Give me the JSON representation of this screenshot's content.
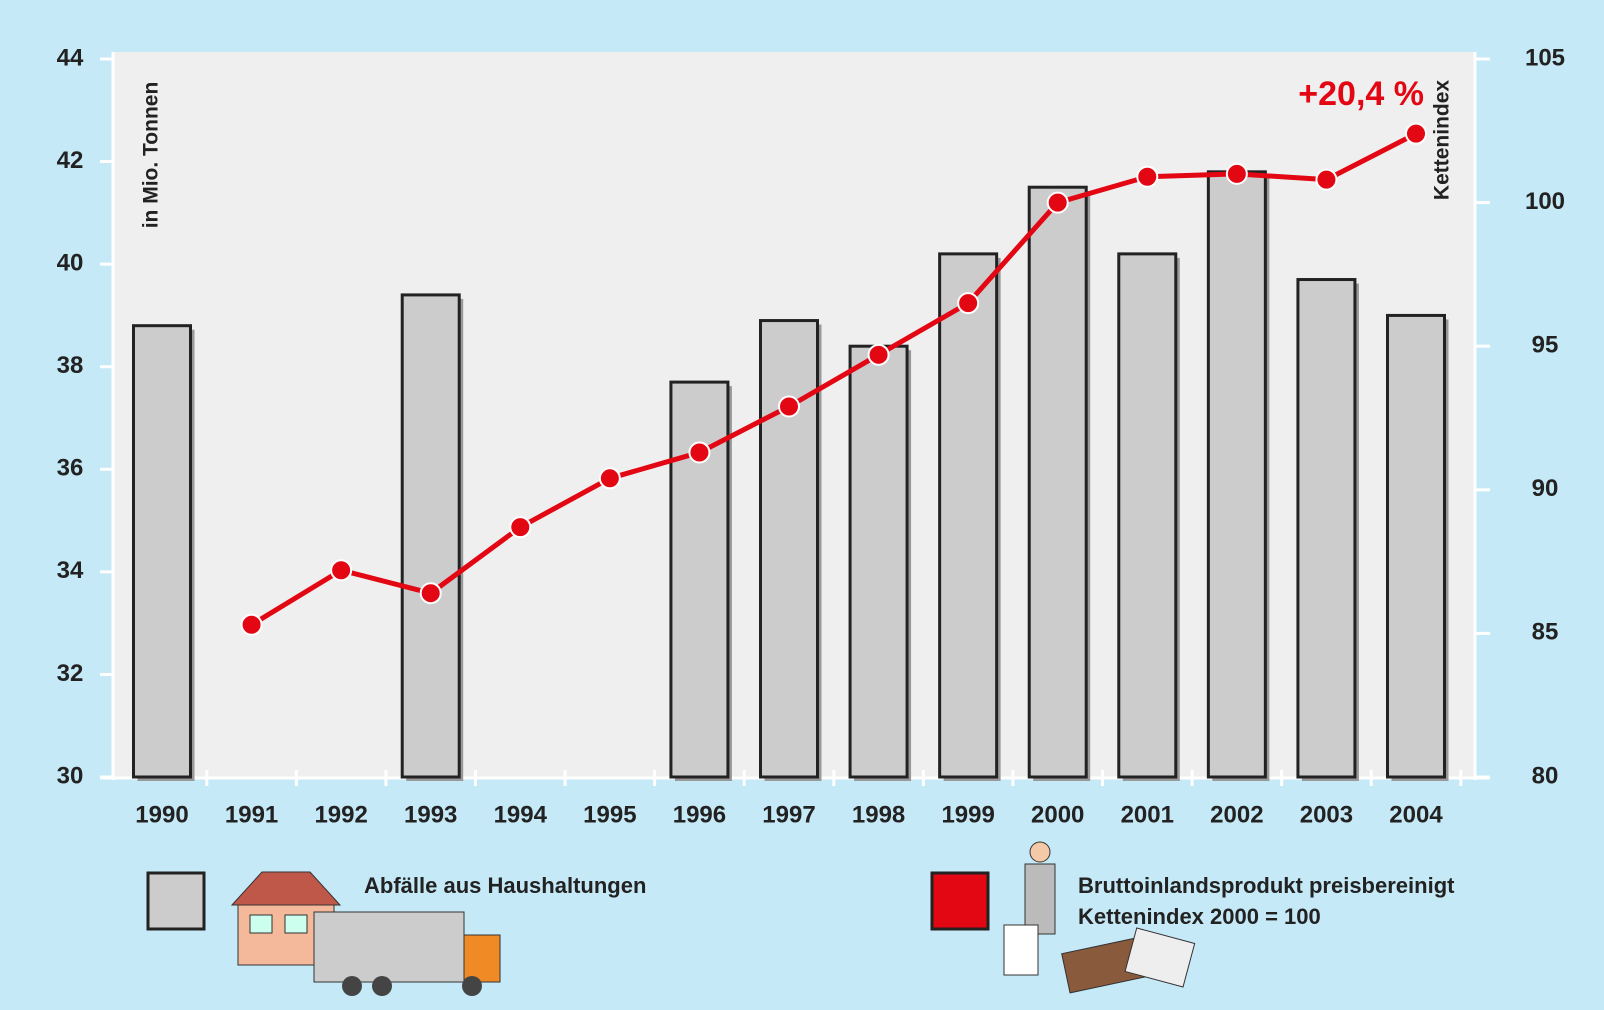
{
  "chart_data": {
    "type": "bar-line",
    "ylabel": "in Mio. Tonnen",
    "y2label": "Kettenindex",
    "annotation": "+20,4 %",
    "categories": [
      "1990",
      "1991",
      "1992",
      "1993",
      "1994",
      "1995",
      "1996",
      "1997",
      "1998",
      "1999",
      "2000",
      "2001",
      "2002",
      "2003",
      "2004"
    ],
    "series": [
      {
        "name": "Abfälle aus Haushaltungen",
        "type": "bar",
        "color": "#cccccc",
        "values": [
          38.8,
          null,
          null,
          39.4,
          null,
          null,
          37.7,
          38.9,
          38.4,
          40.2,
          41.5,
          40.2,
          41.8,
          39.7,
          39.0
        ]
      },
      {
        "name": "Bruttoinlandsprodukt preisbereinigt Kettenindex 2000 = 100",
        "type": "line",
        "axis": "y2",
        "color": "#e30613",
        "values": [
          null,
          85.3,
          87.2,
          86.4,
          88.7,
          90.4,
          91.3,
          92.9,
          94.7,
          96.5,
          100,
          100.9,
          101.0,
          100.8,
          102.4
        ]
      }
    ],
    "ylim": [
      30,
      44
    ],
    "yticks": [
      30,
      32,
      34,
      36,
      38,
      40,
      42,
      44
    ],
    "y2lim": [
      80,
      105
    ],
    "y2ticks": [
      80,
      85,
      90,
      95,
      100,
      105
    ]
  }
}
